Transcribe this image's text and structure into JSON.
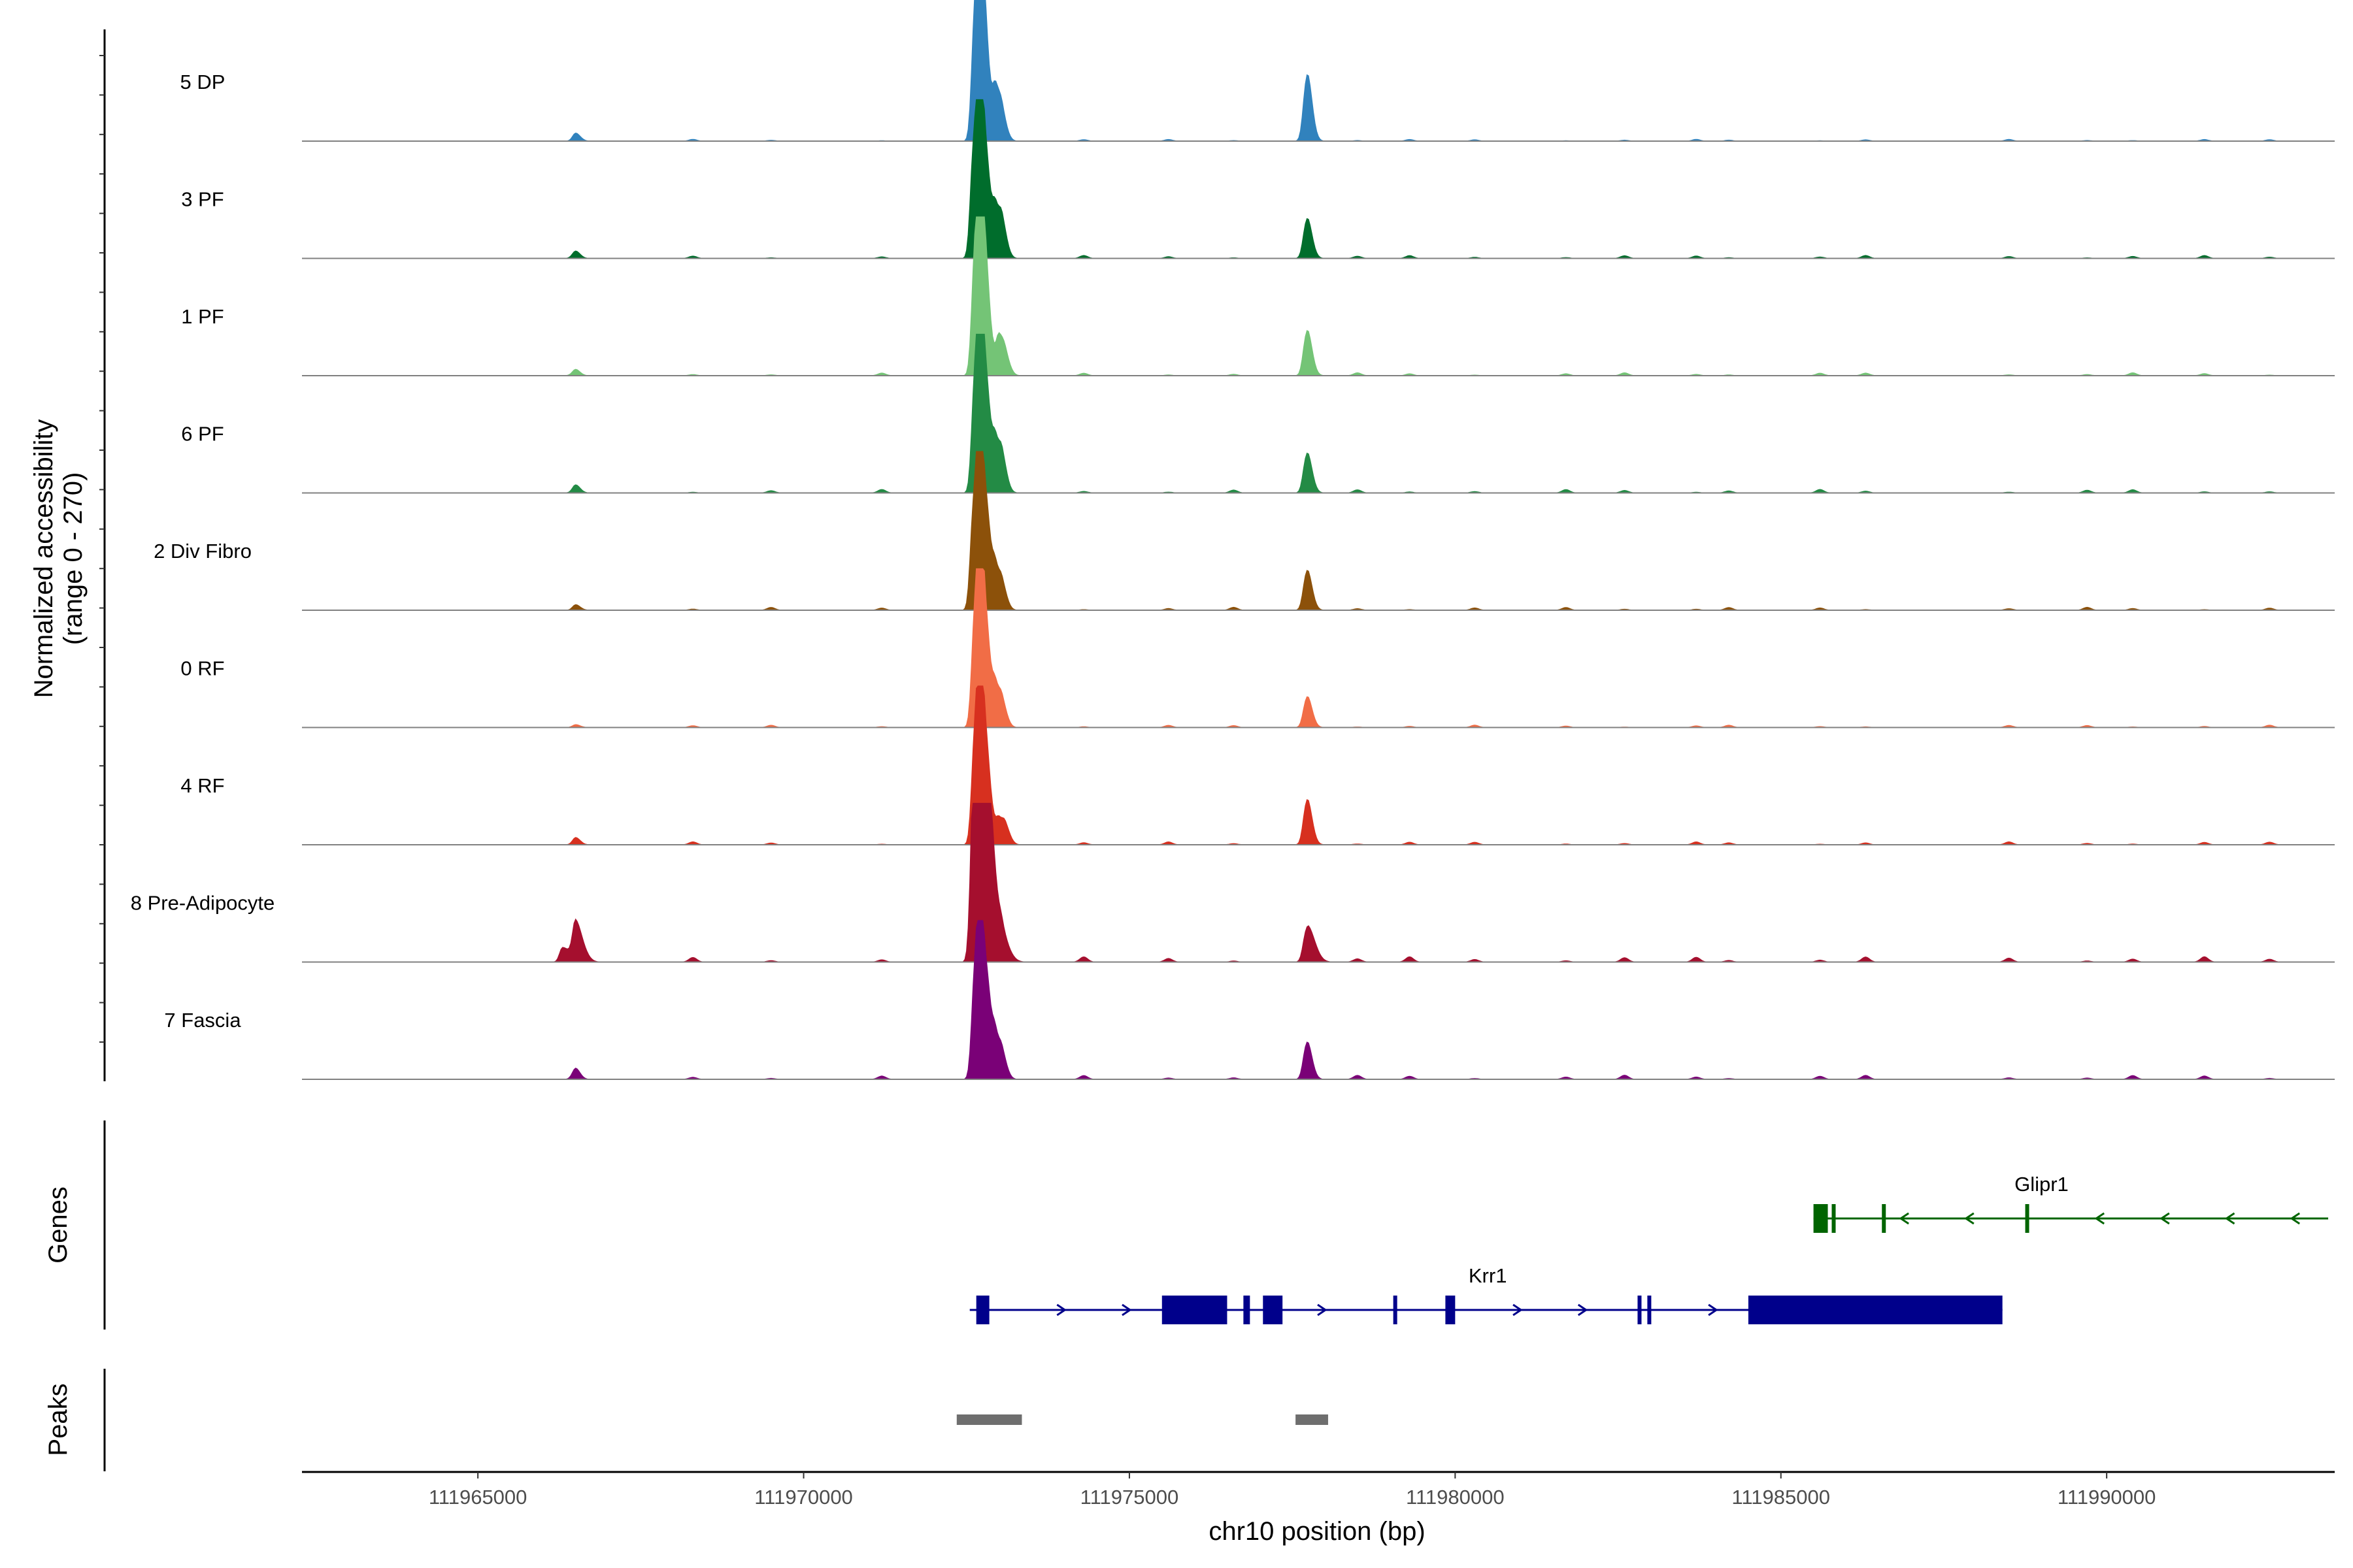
{
  "chart_data": {
    "type": "area",
    "title": "",
    "xlabel": "chr10 position (bp)",
    "ylabel": "Normalized accessibility",
    "ylabel_range": "(range 0 - 270)",
    "xlim": [
      111962300,
      111993500
    ],
    "ylim": [
      0,
      270
    ],
    "x_ticks": [
      111965000,
      111970000,
      111975000,
      111980000,
      111985000,
      111990000
    ],
    "x_tick_labels": [
      "111965000",
      "111970000",
      "111975000",
      "111980000",
      "111985000",
      "111990000"
    ],
    "series": [
      {
        "name": "5 DP",
        "color": "#3182bd",
        "x": [
          111966500,
          111972620,
          111972690,
          111972750,
          111972850,
          111972950,
          111973050,
          111977700,
          111977750
        ],
        "values": [
          12,
          180,
          190,
          175,
          40,
          80,
          35,
          65,
          60
        ],
        "noise": 3,
        "decay": 0.9
      },
      {
        "name": "3 PF",
        "color": "#006d2c",
        "x": [
          111966500,
          111972600,
          111972680,
          111972750,
          111972850,
          111972950,
          111973050,
          111977700,
          111977750
        ],
        "values": [
          8,
          160,
          180,
          165,
          60,
          70,
          50,
          40,
          35
        ],
        "noise": 5,
        "decay": 0.9
      },
      {
        "name": "1 PF",
        "color": "#74c476",
        "x": [
          111966500,
          111972620,
          111972690,
          111972750,
          111972850,
          111973000,
          111973100,
          111977700,
          111977750
        ],
        "values": [
          6,
          170,
          190,
          175,
          50,
          65,
          25,
          45,
          40
        ],
        "noise": 5,
        "decay": 0.9
      },
      {
        "name": "6 PF",
        "color": "#238b45",
        "x": [
          111966500,
          111972620,
          111972690,
          111972750,
          111972850,
          111972950,
          111973050,
          111977700,
          111977750
        ],
        "values": [
          10,
          160,
          175,
          165,
          70,
          70,
          50,
          40,
          35
        ],
        "noise": 6,
        "decay": 0.9
      },
      {
        "name": "2 Div Fibro",
        "color": "#8c510a",
        "x": [
          111966500,
          111972600,
          111972680,
          111972750,
          111972850,
          111972950,
          111973050,
          111977700,
          111977750
        ],
        "values": [
          8,
          150,
          175,
          160,
          70,
          55,
          35,
          40,
          35
        ],
        "noise": 5,
        "decay": 0.9
      },
      {
        "name": "0 RF",
        "color": "#f16d46",
        "x": [
          111966500,
          111972620,
          111972690,
          111972750,
          111972850,
          111972950,
          111973050,
          111977700,
          111977750
        ],
        "values": [
          4,
          160,
          170,
          160,
          60,
          55,
          35,
          30,
          28
        ],
        "noise": 4,
        "decay": 0.9
      },
      {
        "name": "4 RF",
        "color": "#d7301f",
        "x": [
          111966500,
          111972620,
          111972690,
          111972750,
          111972850,
          111973000,
          111973100,
          111977700,
          111977750
        ],
        "values": [
          10,
          155,
          165,
          150,
          60,
          40,
          25,
          45,
          40
        ],
        "noise": 5,
        "decay": 0.9
      },
      {
        "name": "8 Pre-Adipocyte",
        "color": "#a50f2e",
        "x": [
          111966300,
          111966500,
          111972600,
          111972650,
          111972710,
          111972800,
          111972900,
          111973050,
          111977700,
          111977750
        ],
        "values": [
          25,
          60,
          210,
          245,
          195,
          130,
          75,
          30,
          35,
          30
        ],
        "noise": 9,
        "decay": 0.75
      },
      {
        "name": "7 Fascia",
        "color": "#7a0177",
        "x": [
          111966500,
          111972620,
          111972690,
          111972750,
          111972850,
          111972950,
          111973050,
          111977700,
          111977750
        ],
        "values": [
          12,
          150,
          160,
          140,
          80,
          55,
          35,
          38,
          32
        ],
        "noise": 7,
        "decay": 0.9
      }
    ],
    "genes_label": "Genes",
    "genes": [
      {
        "name": "Glipr1",
        "strand": "-",
        "color": "#006400",
        "start": 111985500,
        "end": 111993400,
        "exons": [
          [
            111985500,
            111985720
          ],
          [
            111985780,
            111985800
          ],
          [
            111986550,
            111986600
          ],
          [
            111988750,
            111988800
          ]
        ]
      },
      {
        "name": "Krr1",
        "strand": "+",
        "color": "#00008b",
        "start": 111972550,
        "end": 111988400,
        "exons": [
          [
            111972650,
            111972850
          ],
          [
            111975500,
            111976500
          ],
          [
            111976750,
            111976850
          ],
          [
            111977050,
            111977350
          ],
          [
            111979050,
            111979080
          ],
          [
            111979850,
            111980000
          ],
          [
            111982800,
            111982840
          ],
          [
            111982950,
            111983000
          ],
          [
            111984500,
            111988400
          ]
        ]
      }
    ],
    "peaks_label": "Peaks",
    "peaks": [
      [
        111972350,
        111973350
      ],
      [
        111977550,
        111978050
      ]
    ]
  }
}
